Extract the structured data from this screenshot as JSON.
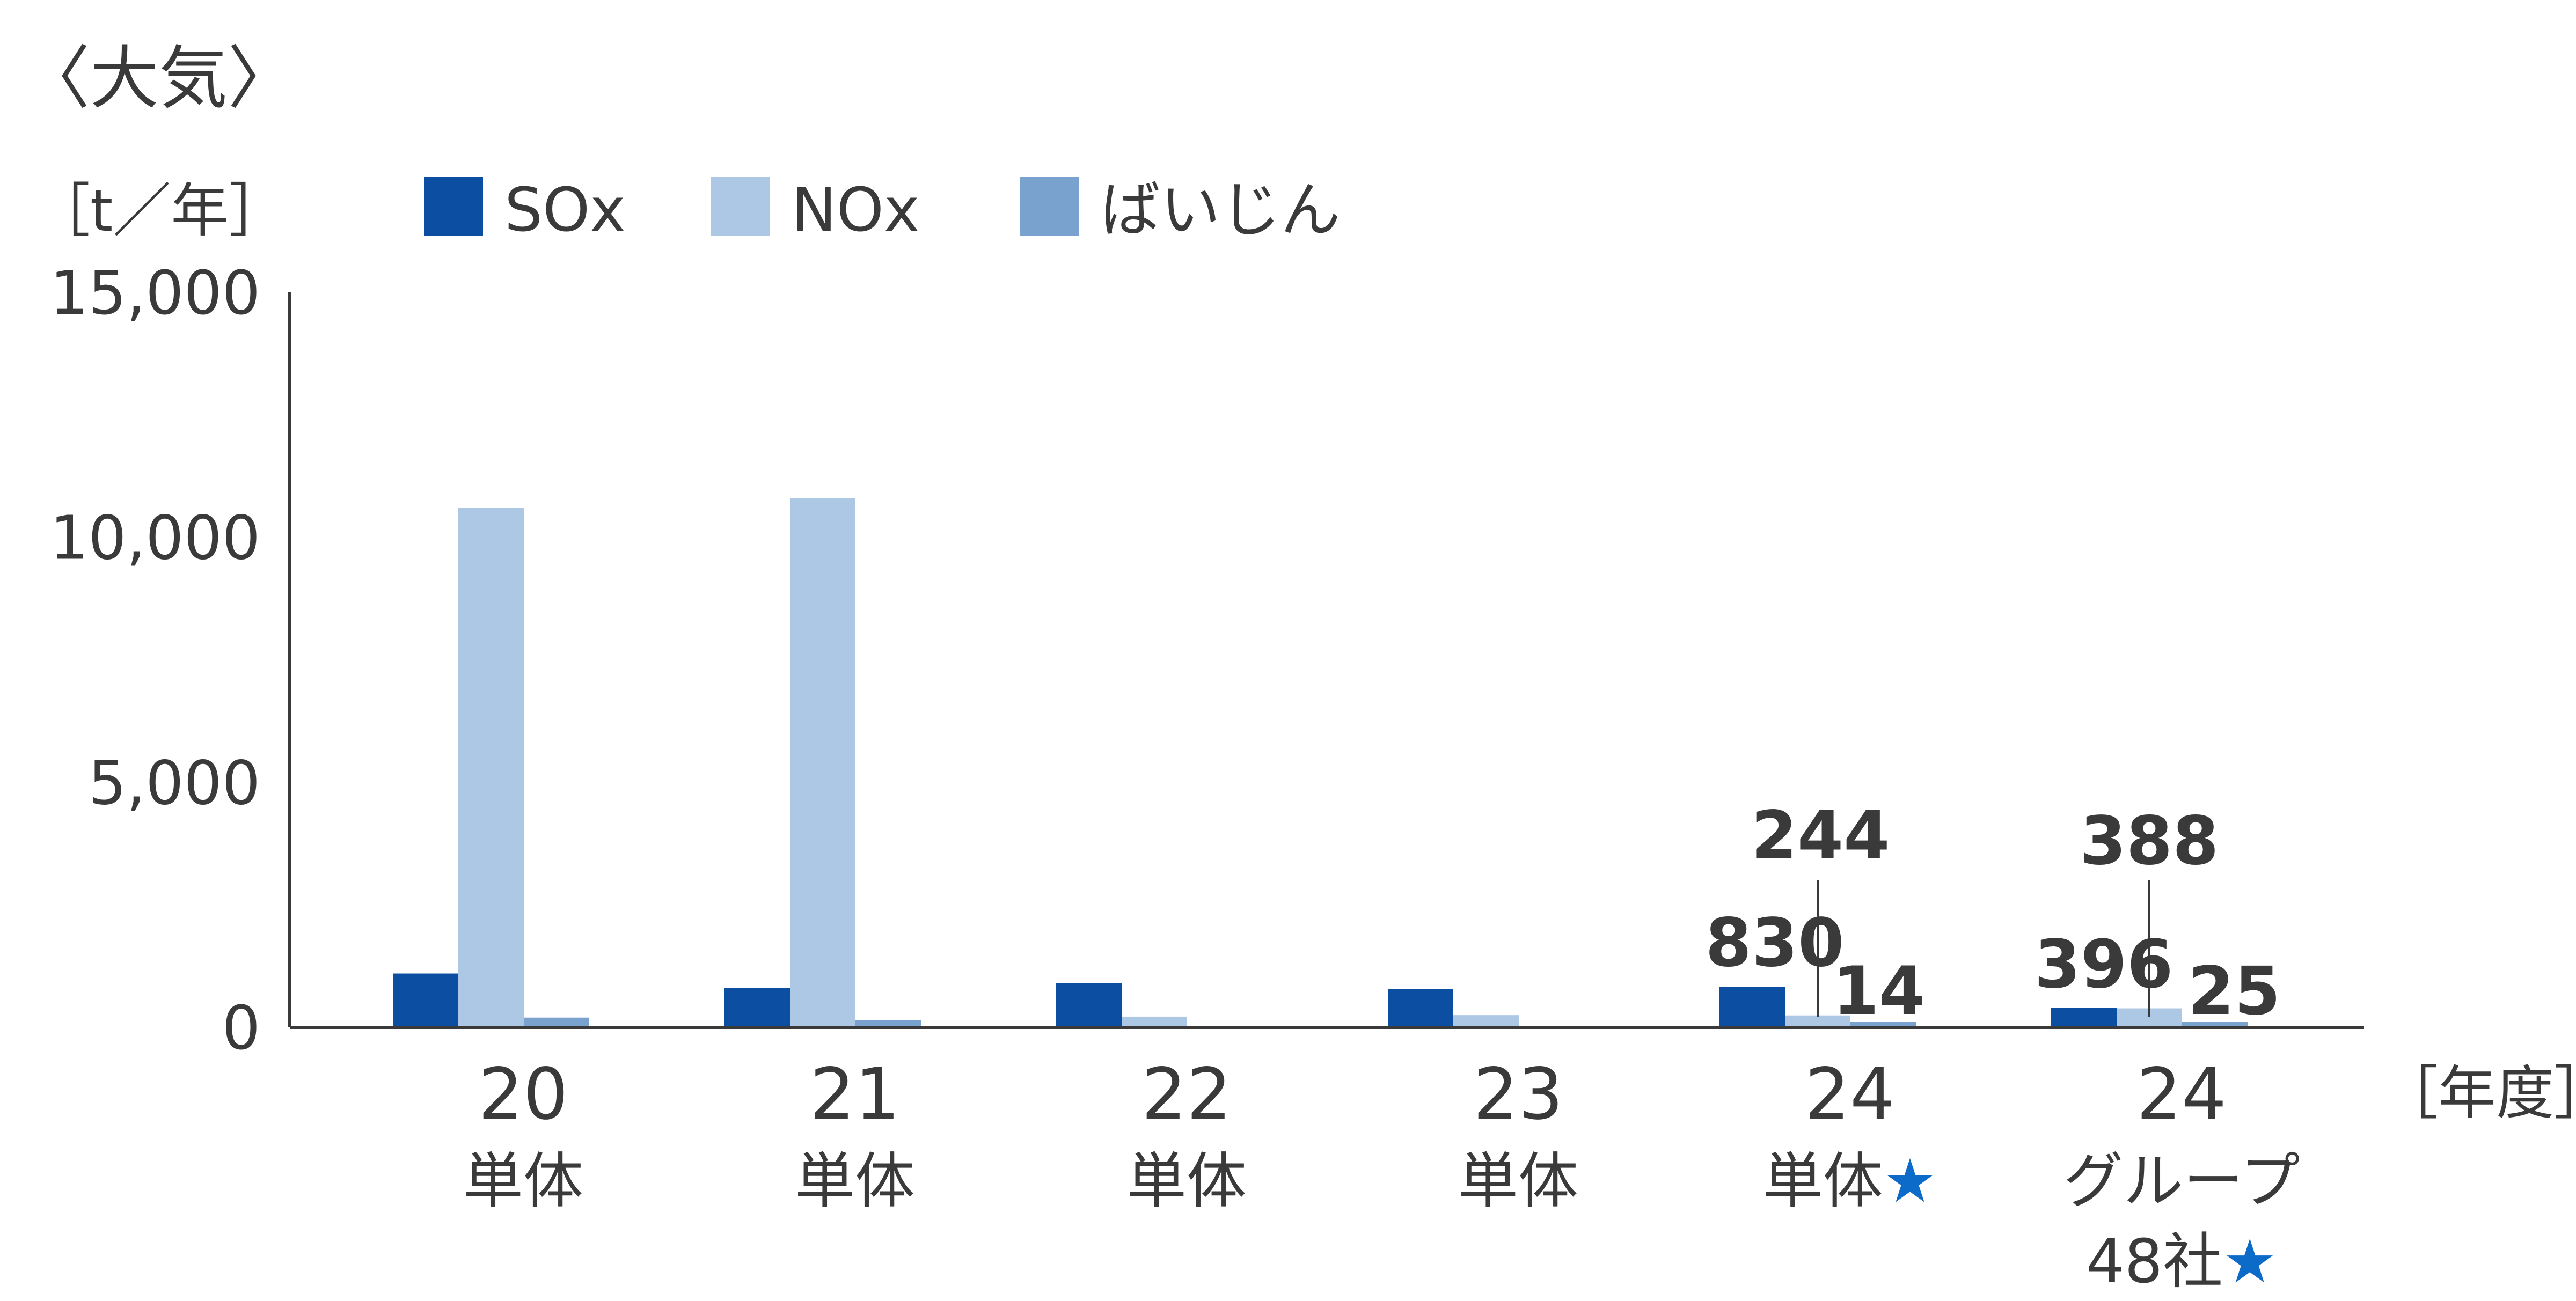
{
  "chart_data": {
    "type": "bar",
    "title": "〈大気〉",
    "yunit": "［t／年］",
    "xunit": "［年度］",
    "ylim": [
      0,
      15000
    ],
    "yticks": [
      "0",
      "5,000",
      "10,000",
      "15,000"
    ],
    "ytick_values": [
      0,
      5000,
      10000,
      15000
    ],
    "categories": [
      {
        "year": "20",
        "sub": "単体",
        "sub2": "",
        "star": false
      },
      {
        "year": "21",
        "sub": "単体",
        "sub2": "",
        "star": false
      },
      {
        "year": "22",
        "sub": "単体",
        "sub2": "",
        "star": false
      },
      {
        "year": "23",
        "sub": "単体",
        "sub2": "",
        "star": false
      },
      {
        "year": "24",
        "sub": "単体",
        "sub2": "",
        "star": true
      },
      {
        "year": "24",
        "sub": "グループ",
        "sub2": "48社",
        "star": true
      }
    ],
    "star_symbol": "★",
    "series": [
      {
        "name": "SOx",
        "color": "#0b4ea2",
        "values": [
          1100,
          800,
          900,
          780,
          830,
          396
        ]
      },
      {
        "name": "NOx",
        "color": "#adc8e4",
        "values": [
          10600,
          10800,
          220,
          250,
          244,
          388
        ]
      },
      {
        "name": "ばいじん",
        "color": "#79a2cf",
        "values": [
          200,
          150,
          0,
          0,
          14,
          25
        ]
      }
    ],
    "data_labels": [
      {
        "category": 4,
        "series": 0,
        "text": "830"
      },
      {
        "category": 4,
        "series": 1,
        "text": "244"
      },
      {
        "category": 4,
        "series": 2,
        "text": "14"
      },
      {
        "category": 5,
        "series": 0,
        "text": "396"
      },
      {
        "category": 5,
        "series": 1,
        "text": "388"
      },
      {
        "category": 5,
        "series": 2,
        "text": "25"
      }
    ]
  }
}
